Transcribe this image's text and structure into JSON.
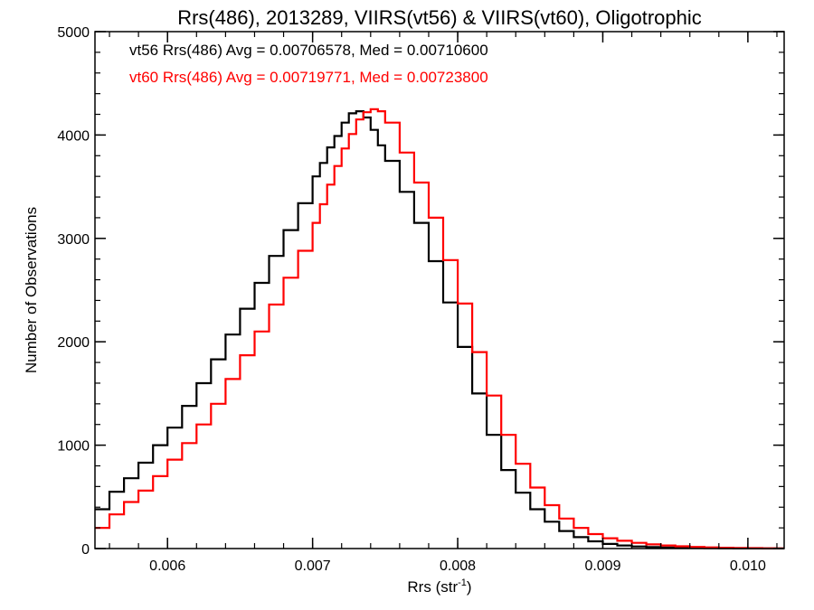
{
  "chart_data": {
    "type": "line",
    "title": "Rrs(486), 2013289, VIIRS(vt56) & VIIRS(vt60), Oligotrophic",
    "xlabel_main": "Rrs (str",
    "xlabel_sup": "-1",
    "xlabel_close": ")",
    "ylabel": "Number of Observations",
    "xlim": [
      0.0055,
      0.01025
    ],
    "ylim": [
      0,
      5000
    ],
    "x_ticks": [
      0.006,
      0.007,
      0.008,
      0.009,
      0.01
    ],
    "x_tick_labels": [
      "0.006",
      "0.007",
      "0.008",
      "0.009",
      "0.010"
    ],
    "y_ticks": [
      0,
      1000,
      2000,
      3000,
      4000,
      5000
    ],
    "y_tick_labels": [
      "0",
      "1000",
      "2000",
      "3000",
      "4000",
      "5000"
    ],
    "grid": false,
    "step": true,
    "annotations": [
      {
        "text": "vt56 Rrs(486) Avg = 0.00706578, Med = 0.00710600",
        "color": "#000000"
      },
      {
        "text": "vt60 Rrs(486) Avg = 0.00719771, Med = 0.00723800",
        "color": "#ff0000"
      }
    ],
    "series": [
      {
        "color": "#000000",
        "x": [
          0.0055,
          0.0056,
          0.0057,
          0.0058,
          0.0059,
          0.006,
          0.0061,
          0.0062,
          0.0063,
          0.0064,
          0.0065,
          0.0066,
          0.0067,
          0.0068,
          0.0069,
          0.007,
          0.00705,
          0.0071,
          0.00715,
          0.0072,
          0.00725,
          0.0073,
          0.00735,
          0.0074,
          0.00745,
          0.0075,
          0.0076,
          0.0077,
          0.0078,
          0.0079,
          0.008,
          0.0081,
          0.0082,
          0.0083,
          0.0084,
          0.0085,
          0.0086,
          0.0087,
          0.0088,
          0.0089,
          0.009,
          0.0091,
          0.0092,
          0.0093,
          0.0094,
          0.0095,
          0.0096,
          0.0097,
          0.0098,
          0.0099,
          0.01,
          0.0101,
          0.0102,
          0.01025
        ],
        "y": [
          380,
          550,
          680,
          830,
          1000,
          1170,
          1380,
          1600,
          1830,
          2070,
          2320,
          2570,
          2830,
          3080,
          3340,
          3600,
          3730,
          3880,
          3990,
          4120,
          4210,
          4230,
          4170,
          4050,
          3900,
          3750,
          3450,
          3150,
          2780,
          2380,
          1950,
          1500,
          1100,
          760,
          540,
          380,
          260,
          170,
          110,
          70,
          45,
          30,
          20,
          14,
          10,
          7,
          5,
          4,
          3,
          2,
          2,
          1,
          1,
          1
        ]
      },
      {
        "color": "#ff0000",
        "x": [
          0.0055,
          0.0056,
          0.0057,
          0.0058,
          0.0059,
          0.006,
          0.0061,
          0.0062,
          0.0063,
          0.0064,
          0.0065,
          0.0066,
          0.0067,
          0.0068,
          0.0069,
          0.007,
          0.00705,
          0.0071,
          0.00715,
          0.0072,
          0.00725,
          0.0073,
          0.00735,
          0.0074,
          0.00745,
          0.0075,
          0.0076,
          0.0077,
          0.0078,
          0.0079,
          0.008,
          0.0081,
          0.0082,
          0.0083,
          0.0084,
          0.0085,
          0.0086,
          0.0087,
          0.0088,
          0.0089,
          0.009,
          0.0091,
          0.0092,
          0.0093,
          0.0094,
          0.0095,
          0.0096,
          0.0097,
          0.0098,
          0.0099,
          0.01,
          0.0101,
          0.0102,
          0.01025
        ],
        "y": [
          200,
          330,
          450,
          560,
          700,
          860,
          1020,
          1200,
          1400,
          1640,
          1870,
          2100,
          2360,
          2620,
          2880,
          3150,
          3330,
          3520,
          3700,
          3870,
          4010,
          4150,
          4220,
          4250,
          4230,
          4120,
          3830,
          3540,
          3200,
          2790,
          2370,
          1900,
          1480,
          1100,
          820,
          590,
          420,
          290,
          200,
          140,
          100,
          75,
          55,
          40,
          30,
          22,
          16,
          11,
          8,
          6,
          4,
          3,
          2,
          2
        ]
      }
    ]
  }
}
